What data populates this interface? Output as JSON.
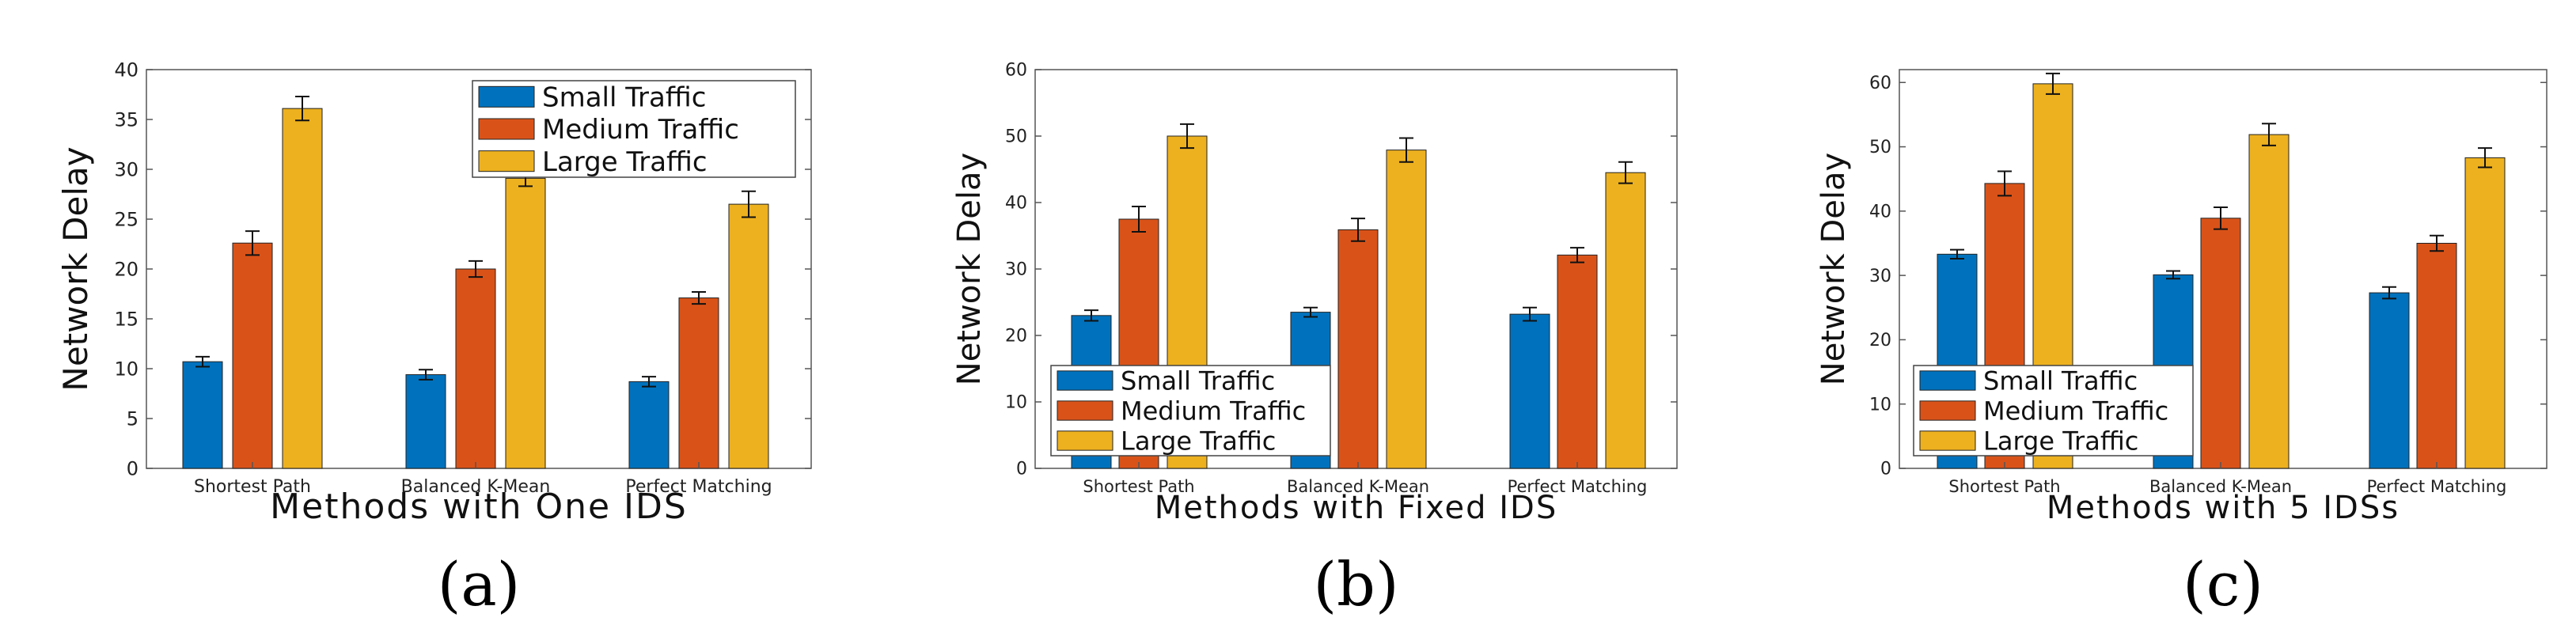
{
  "colors": {
    "small": "#0072BD",
    "medium": "#D95319",
    "large": "#EDB120"
  },
  "chart_data": [
    {
      "type": "bar",
      "panel_label": "(a)",
      "title": "",
      "xlabel": "Methods with One IDS",
      "ylabel": "Network Delay",
      "categories": [
        "Shortest Path",
        "Balanced K-Mean",
        "Perfect Matching"
      ],
      "ylim": [
        0,
        40
      ],
      "yticks": [
        "0",
        "5",
        "10",
        "15",
        "20",
        "25",
        "30",
        "35",
        "40"
      ],
      "legend_position": "top-right",
      "series": [
        {
          "name": "Small Traffic",
          "values": [
            10.7,
            9.4,
            8.7
          ],
          "errors": [
            0.5,
            0.5,
            0.5
          ]
        },
        {
          "name": "Medium Traffic",
          "values": [
            22.6,
            20.0,
            17.1
          ],
          "errors": [
            1.2,
            0.8,
            0.6
          ]
        },
        {
          "name": "Large Traffic",
          "values": [
            36.1,
            29.1,
            26.5
          ],
          "errors": [
            1.2,
            0.8,
            1.3
          ]
        }
      ]
    },
    {
      "type": "bar",
      "panel_label": "(b)",
      "title": "",
      "xlabel": "Methods with Fixed IDS",
      "ylabel": "Network Delay",
      "categories": [
        "Shortest Path",
        "Balanced K-Mean",
        "Perfect Matching"
      ],
      "ylim": [
        0,
        60
      ],
      "yticks": [
        "0",
        "10",
        "20",
        "30",
        "40",
        "50",
        "60"
      ],
      "legend_position": "bottom-left",
      "series": [
        {
          "name": "Small Traffic",
          "values": [
            23.0,
            23.5,
            23.2
          ],
          "errors": [
            0.8,
            0.7,
            1.0
          ]
        },
        {
          "name": "Medium Traffic",
          "values": [
            37.5,
            35.9,
            32.1
          ],
          "errors": [
            1.9,
            1.7,
            1.1
          ]
        },
        {
          "name": "Large Traffic",
          "values": [
            50.0,
            47.9,
            44.5
          ],
          "errors": [
            1.8,
            1.8,
            1.6
          ]
        }
      ]
    },
    {
      "type": "bar",
      "panel_label": "(c)",
      "title": "",
      "xlabel": "Methods with 5 IDSs",
      "ylabel": "Network Delay",
      "categories": [
        "Shortest Path",
        "Balanced K-Mean",
        "Perfect Matching"
      ],
      "ylim": [
        0,
        62
      ],
      "yticks": [
        "0",
        "10",
        "20",
        "30",
        "40",
        "50",
        "60"
      ],
      "legend_position": "bottom-left",
      "series": [
        {
          "name": "Small Traffic",
          "values": [
            33.3,
            30.1,
            27.3
          ],
          "errors": [
            0.7,
            0.6,
            0.9
          ]
        },
        {
          "name": "Medium Traffic",
          "values": [
            44.3,
            38.9,
            35.0
          ],
          "errors": [
            1.9,
            1.7,
            1.2
          ]
        },
        {
          "name": "Large Traffic",
          "values": [
            59.8,
            51.9,
            48.3
          ],
          "errors": [
            1.6,
            1.7,
            1.5
          ]
        }
      ]
    }
  ]
}
